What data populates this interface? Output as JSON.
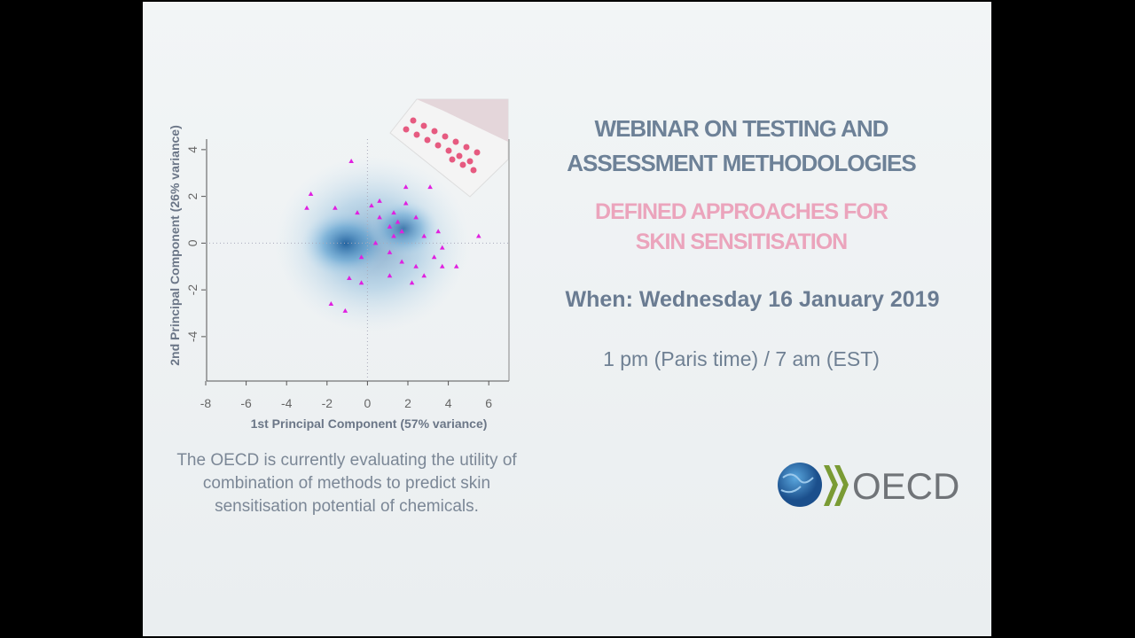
{
  "slide": {
    "title": [
      "WEBINAR ON TESTING AND",
      "ASSESSMENT METHODOLOGIES"
    ],
    "subtitle": [
      "DEFINED APPROACHES FOR",
      "SKIN SENSITISATION"
    ],
    "when": "When: Wednesday 16 January 2019",
    "time": "1 pm (Paris time) / 7 am (EST)",
    "caption": [
      "The OECD is currently evaluating the utility of",
      "combination of methods to predict skin",
      "sensitisation potential of chemicals."
    ],
    "logo": "OECD"
  },
  "chart_data": {
    "type": "scatter",
    "x_label": "1st Principal Component (57% variance)",
    "y_label": "2nd Principal Component (26% variance)",
    "xlim": [
      -8,
      7
    ],
    "ylim": [
      -5.9,
      4.45
    ],
    "xticks": [
      -8,
      -6,
      -4,
      -2,
      0,
      2,
      4,
      6
    ],
    "yticks": [
      -4,
      -2,
      0,
      2,
      4
    ],
    "series": [
      {
        "color": "#e020e0",
        "x": [
          -0.8,
          -2.8,
          -3.0,
          3.1,
          5.5,
          1.3,
          1.5,
          1.7,
          1.1,
          0.6,
          0.2,
          -0.5,
          -1.6,
          1.9,
          2.4,
          2.8,
          3.5,
          3.7,
          3.3,
          4.4,
          2.4,
          1.7,
          1.1,
          0.4,
          -0.3,
          2.2,
          1.1,
          -0.9,
          -1.8,
          -1.1,
          -0.3,
          0.6,
          1.9,
          1.3,
          3.7,
          2.8
        ],
        "y": [
          3.5,
          2.1,
          1.5,
          2.4,
          0.3,
          1.3,
          0.9,
          0.5,
          0.7,
          1.1,
          1.6,
          1.3,
          1.5,
          1.7,
          1.1,
          0.3,
          0.5,
          -0.2,
          -0.6,
          -1.0,
          -1.0,
          -0.8,
          -0.4,
          0,
          -0.6,
          -1.7,
          -1.4,
          -1.5,
          -2.6,
          -2.9,
          -1.7,
          1.8,
          2.4,
          0.3,
          -1.0,
          -1.4
        ]
      }
    ]
  }
}
